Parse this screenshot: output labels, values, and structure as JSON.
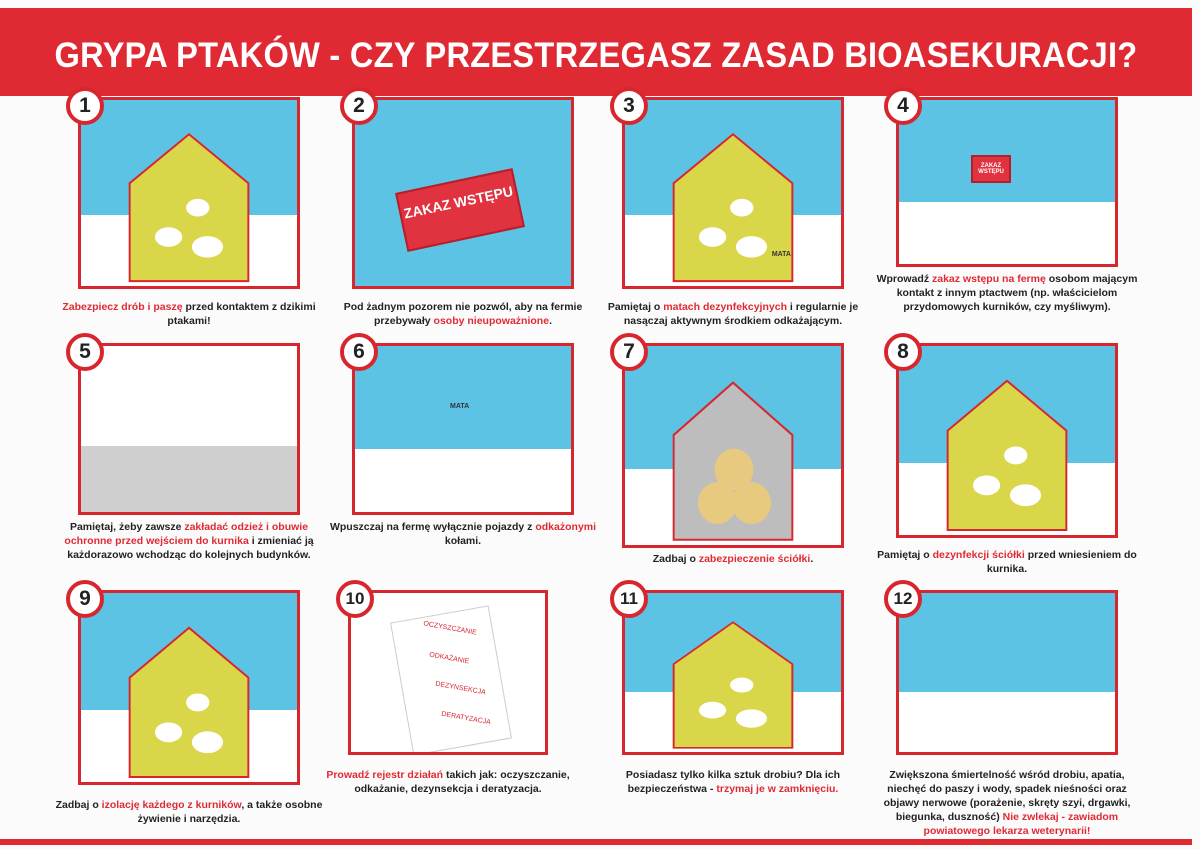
{
  "title": "GRYPA PTAKÓW - CZY PRZESTRZEGASZ ZASAD BIOASEKURACJI?",
  "colors": {
    "accent": "#e02a33",
    "sky": "#5cc3e4",
    "house": "#d9d64a"
  },
  "panels": [
    {
      "number": "1",
      "icon": "house-with-chickens-and-wild-birds",
      "caption": [
        {
          "t": "Zabezpiecz drób i paszę",
          "r": true
        },
        {
          "t": " przed kontaktem z dzikimi ptakami!",
          "r": false
        }
      ]
    },
    {
      "number": "2",
      "icon": "no-entry-sign",
      "sign": "ZAKAZ WSTĘPU",
      "caption": [
        {
          "t": "Pod żadnym pozorem nie pozwól, aby na fermie przebywały ",
          "r": false
        },
        {
          "t": "osoby nieupoważnione",
          "r": true
        },
        {
          "t": ".",
          "r": false
        }
      ]
    },
    {
      "number": "3",
      "icon": "disinfection-mat",
      "mat_label": "MATA",
      "caption": [
        {
          "t": "Pamiętaj o ",
          "r": false
        },
        {
          "t": "matach dezynfekcyjnych",
          "r": true
        },
        {
          "t": " i regularnie je nasączaj aktywnym środkiem odkażającym.",
          "r": false
        }
      ]
    },
    {
      "number": "4",
      "icon": "fence-with-people",
      "sign": "ZAKAZ WSTĘPU",
      "caption": [
        {
          "t": "Wprowadź ",
          "r": false
        },
        {
          "t": "zakaz wstępu na fermę",
          "r": true
        },
        {
          "t": " osobom mającym kontakt z innym ptactwem (np. właścicielom przydomowych kurników, czy myśliwym).",
          "r": false
        }
      ]
    },
    {
      "number": "5",
      "icon": "protective-clothing",
      "caption": [
        {
          "t": "Pamiętaj, żeby zawsze ",
          "r": false
        },
        {
          "t": "zakładać odzież i obuwie ochronne przed wejściem do kurnika",
          "r": true
        },
        {
          "t": " i zmieniać ją każdorazowo wchodząc do kolejnych budynków.",
          "r": false
        }
      ]
    },
    {
      "number": "6",
      "icon": "truck-wheel-disinfection",
      "mat_label": "MATA",
      "caption": [
        {
          "t": "Wpuszczaj na fermę wyłącznie pojazdy z ",
          "r": false
        },
        {
          "t": "odkażonymi",
          "r": true
        },
        {
          "t": " kołami.",
          "r": false
        }
      ]
    },
    {
      "number": "7",
      "icon": "straw-bales-in-barn",
      "caption": [
        {
          "t": "Zadbaj o ",
          "r": false
        },
        {
          "t": "zabezpieczenie ściółki",
          "r": true
        },
        {
          "t": ".",
          "r": false
        }
      ]
    },
    {
      "number": "8",
      "icon": "spraying-straw",
      "caption": [
        {
          "t": "Pamiętaj o ",
          "r": false
        },
        {
          "t": "dezynfekcji ściółki",
          "r": true
        },
        {
          "t": " przed wniesieniem do kurnika.",
          "r": false
        }
      ]
    },
    {
      "number": "9",
      "icon": "separate-coops",
      "caption": [
        {
          "t": "Zadbaj o ",
          "r": false
        },
        {
          "t": "izolację każdego z kurników",
          "r": true
        },
        {
          "t": ", a także osobne żywienie i narzędzia.",
          "r": false
        }
      ]
    },
    {
      "number": "10",
      "icon": "checklist",
      "checklist": [
        "OCZYSZCZANIE",
        "ODKAŻANIE",
        "DEZYNSEKCJA",
        "DERATYZACJA"
      ],
      "caption": [
        {
          "t": "Prowadź rejestr działań",
          "r": true
        },
        {
          "t": " takich jak: oczyszczanie, odkażanie, dezynsekcja i deratyzacja.",
          "r": false
        }
      ]
    },
    {
      "number": "11",
      "icon": "closed-coop-with-poultry",
      "caption": [
        {
          "t": "Posiadasz tylko kilka sztuk drobiu?  Dla ich bezpieczeństwa - ",
          "r": false
        },
        {
          "t": "trzymaj je w zamknięciu.",
          "r": true
        }
      ]
    },
    {
      "number": "12",
      "icon": "phone-call-alert",
      "caption": [
        {
          "t": "Zwiększona śmiertelność wśród drobiu, apatia, niechęć do paszy i wody, spadek nieśności oraz objawy nerwowe (porażenie, skręty szyi, drgawki, biegunka, duszność) ",
          "r": false
        },
        {
          "t": "Nie zwlekaj - zawiadom powiatowego lekarza weterynarii!",
          "r": true
        }
      ]
    }
  ]
}
